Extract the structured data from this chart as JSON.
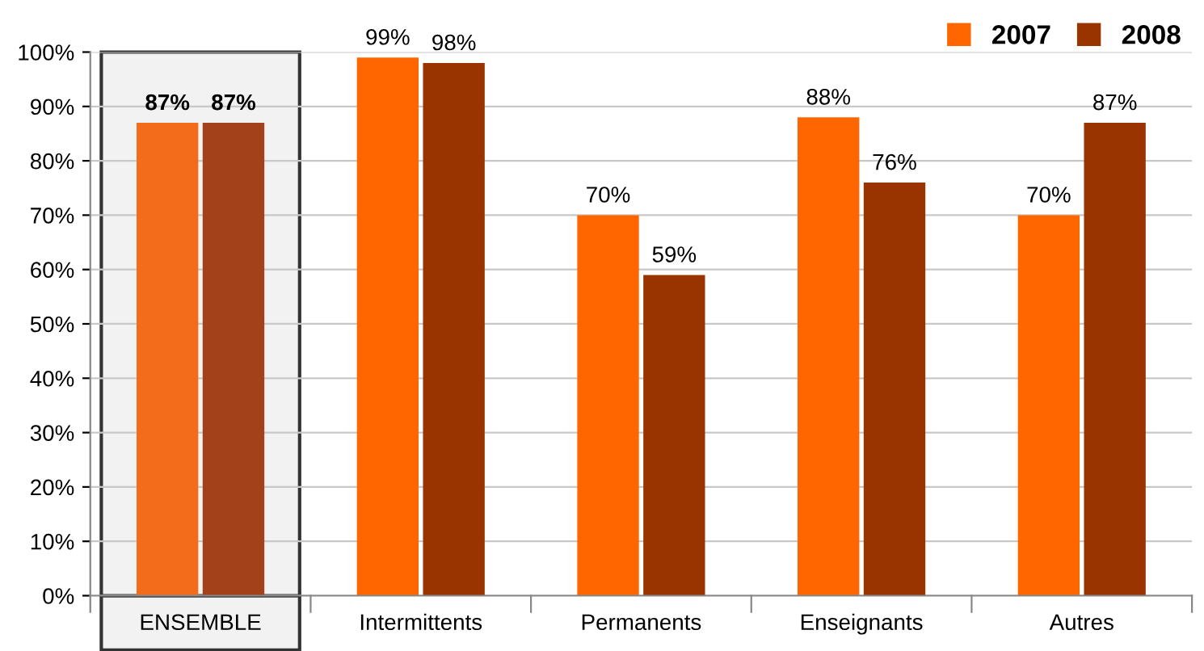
{
  "chart_data": {
    "type": "bar",
    "categories": [
      "ENSEMBLE",
      "Intermittents",
      "Permanents",
      "Enseignants",
      "Autres"
    ],
    "series": [
      {
        "name": "2007",
        "color": "#ff6600",
        "colors": [
          "#f26c1c",
          "#ff6600",
          "#ff6600",
          "#ff6600",
          "#ff6600"
        ],
        "values": [
          87,
          99,
          70,
          88,
          70
        ],
        "value_labels": [
          "87%",
          "99%",
          "70%",
          "88%",
          "70%"
        ]
      },
      {
        "name": "2008",
        "color": "#993300",
        "colors": [
          "#a3411a",
          "#993300",
          "#993300",
          "#993300",
          "#993300"
        ],
        "values": [
          87,
          98,
          59,
          76,
          87
        ],
        "value_labels": [
          "87%",
          "98%",
          "59%",
          "76%",
          "87%"
        ]
      }
    ],
    "ylim": [
      0,
      100
    ],
    "yticks": [
      {
        "value": 0,
        "label": "0%"
      },
      {
        "value": 10,
        "label": "10%"
      },
      {
        "value": 20,
        "label": "20%"
      },
      {
        "value": 30,
        "label": "30%"
      },
      {
        "value": 40,
        "label": "40%"
      },
      {
        "value": 50,
        "label": "50%"
      },
      {
        "value": 60,
        "label": "60%"
      },
      {
        "value": 70,
        "label": "70%"
      },
      {
        "value": 80,
        "label": "80%"
      },
      {
        "value": 90,
        "label": "90%"
      },
      {
        "value": 100,
        "label": "100%"
      }
    ],
    "grid": "y",
    "legend": "top right",
    "bands": [
      {
        "axis": "x",
        "from": "ENSEMBLE",
        "to": "ENSEMBLE",
        "color": "#f2f2f2"
      }
    ]
  }
}
